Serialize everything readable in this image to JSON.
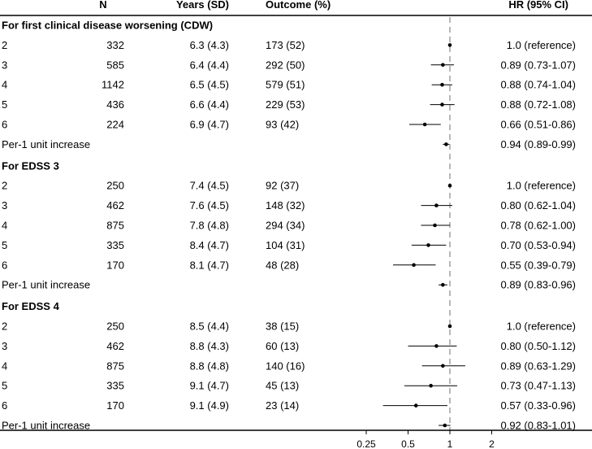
{
  "chart_data": {
    "type": "forest",
    "columns": {
      "group": "",
      "n": "N",
      "years": "Years (SD)",
      "outcome": "Outcome (%)",
      "hr": "HR (95% CI)"
    },
    "x_scale": "log",
    "xlim": [
      0.25,
      2.3
    ],
    "x_ticks": [
      0.25,
      0.5,
      1,
      2
    ],
    "x_tick_labels": [
      "0.25",
      "0.5",
      "1",
      "2"
    ],
    "reference_line": 1,
    "sections": [
      {
        "title": "For first clinical disease worsening (CDW)",
        "rows": [
          {
            "label": "2",
            "n": "332",
            "years": "6.3 (4.3)",
            "outcome": "173 (52)",
            "hr": "1.0 (reference)",
            "est": 1.0,
            "lo": 1.0,
            "hi": 1.0
          },
          {
            "label": "3",
            "n": "585",
            "years": "6.4 (4.4)",
            "outcome": "292 (50)",
            "hr": "0.89 (0.73-1.07)",
            "est": 0.89,
            "lo": 0.73,
            "hi": 1.07
          },
          {
            "label": "4",
            "n": "1142",
            "years": "6.5 (4.5)",
            "outcome": "579 (51)",
            "hr": "0.88 (0.74-1.04)",
            "est": 0.88,
            "lo": 0.74,
            "hi": 1.04
          },
          {
            "label": "5",
            "n": "436",
            "years": "6.6 (4.4)",
            "outcome": "229 (53)",
            "hr": "0.88 (0.72-1.08)",
            "est": 0.88,
            "lo": 0.72,
            "hi": 1.08
          },
          {
            "label": "6",
            "n": "224",
            "years": "6.9 (4.7)",
            "outcome": "93 (42)",
            "hr": "0.66 (0.51-0.86)",
            "est": 0.66,
            "lo": 0.51,
            "hi": 0.86
          },
          {
            "label": "Per-1 unit increase",
            "n": "",
            "years": "",
            "outcome": "",
            "hr": "0.94 (0.89-0.99)",
            "est": 0.94,
            "lo": 0.89,
            "hi": 0.99
          }
        ]
      },
      {
        "title": "For EDSS 3",
        "rows": [
          {
            "label": "2",
            "n": "250",
            "years": "7.4 (4.5)",
            "outcome": "92 (37)",
            "hr": "1.0 (reference)",
            "est": 1.0,
            "lo": 1.0,
            "hi": 1.0
          },
          {
            "label": "3",
            "n": "462",
            "years": "7.6 (4.5)",
            "outcome": "148 (32)",
            "hr": "0.80 (0.62-1.04)",
            "est": 0.8,
            "lo": 0.62,
            "hi": 1.04
          },
          {
            "label": "4",
            "n": "875",
            "years": "7.8 (4.8)",
            "outcome": "294 (34)",
            "hr": "0.78 (0.62-1.00)",
            "est": 0.78,
            "lo": 0.62,
            "hi": 1.0
          },
          {
            "label": "5",
            "n": "335",
            "years": "8.4 (4.7)",
            "outcome": "104 (31)",
            "hr": "0.70 (0.53-0.94)",
            "est": 0.7,
            "lo": 0.53,
            "hi": 0.94
          },
          {
            "label": "6",
            "n": "170",
            "years": "8.1 (4.7)",
            "outcome": "48 (28)",
            "hr": "0.55 (0.39-0.79)",
            "est": 0.55,
            "lo": 0.39,
            "hi": 0.79
          },
          {
            "label": "Per-1 unit increase",
            "n": "",
            "years": "",
            "outcome": "",
            "hr": "0.89 (0.83-0.96)",
            "est": 0.89,
            "lo": 0.83,
            "hi": 0.96
          }
        ]
      },
      {
        "title": "For EDSS 4",
        "rows": [
          {
            "label": "2",
            "n": "250",
            "years": "8.5 (4.4)",
            "outcome": "38 (15)",
            "hr": "1.0 (reference)",
            "est": 1.0,
            "lo": 1.0,
            "hi": 1.0
          },
          {
            "label": "3",
            "n": "462",
            "years": "8.8 (4.3)",
            "outcome": "60 (13)",
            "hr": "0.80 (0.50-1.12)",
            "est": 0.8,
            "lo": 0.5,
            "hi": 1.12
          },
          {
            "label": "4",
            "n": "875",
            "years": "8.8 (4.8)",
            "outcome": "140 (16)",
            "hr": "0.89 (0.63-1.29)",
            "est": 0.89,
            "lo": 0.63,
            "hi": 1.29
          },
          {
            "label": "5",
            "n": "335",
            "years": "9.1 (4.7)",
            "outcome": "45 (13)",
            "hr": "0.73 (0.47-1.13)",
            "est": 0.73,
            "lo": 0.47,
            "hi": 1.13
          },
          {
            "label": "6",
            "n": "170",
            "years": "9.1 (4.9)",
            "outcome": "23 (14)",
            "hr": "0.57 (0.33-0.96)",
            "est": 0.57,
            "lo": 0.33,
            "hi": 0.96
          },
          {
            "label": "Per-1 unit increase",
            "n": "",
            "years": "",
            "outcome": "",
            "hr": "0.92 (0.83-1.01)",
            "est": 0.92,
            "lo": 0.83,
            "hi": 1.01
          }
        ]
      }
    ]
  },
  "colors": {
    "text": "#000000",
    "axis": "#000000",
    "reference_line": "#a6a6a6",
    "marker": "#000000"
  }
}
